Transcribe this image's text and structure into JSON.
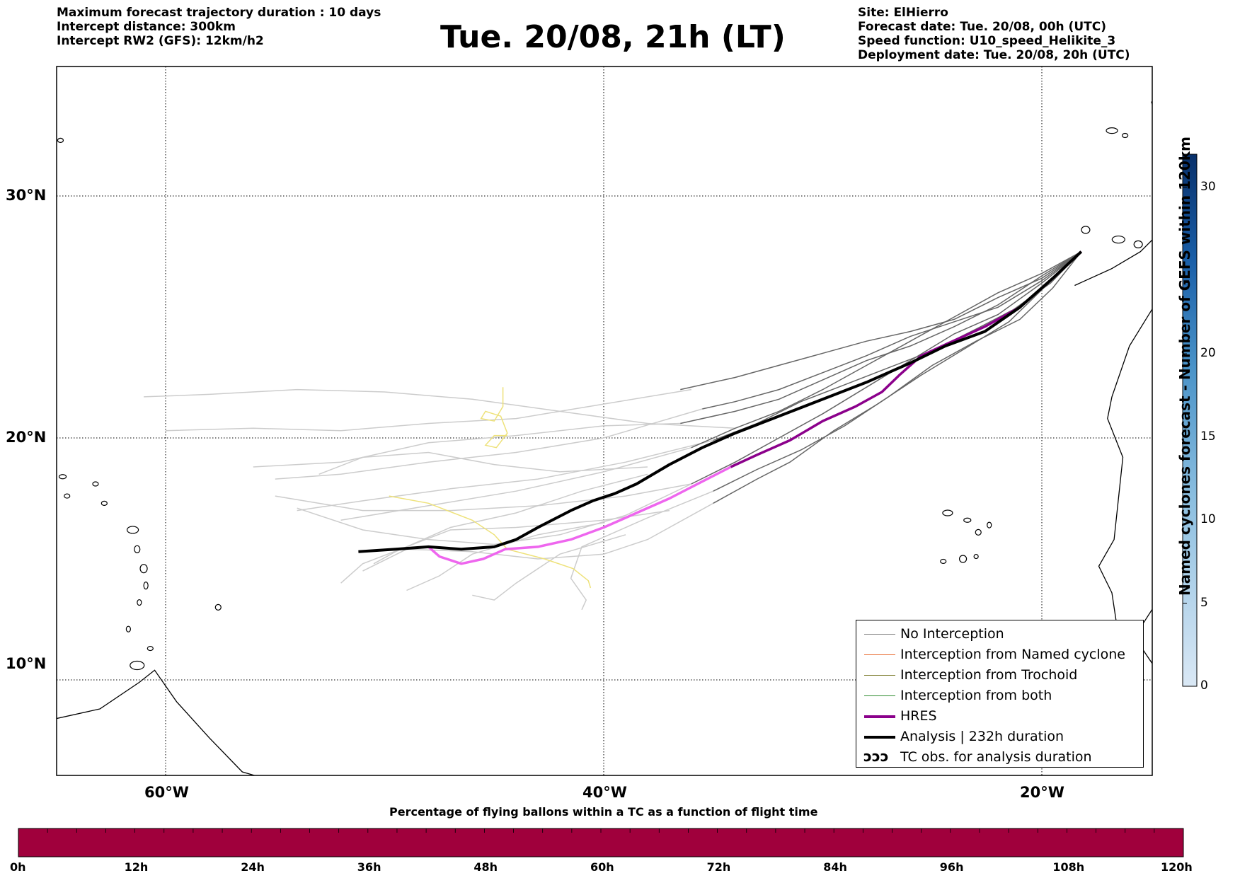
{
  "header": {
    "left_lines": [
      "Maximum forecast trajectory duration : 10 days",
      "Intercept distance: 300km",
      "Intercept RW2 (GFS):  12km/h2"
    ],
    "title": "Tue. 20/08, 21h (LT)",
    "right_lines": [
      "Site: ElHierro",
      "Forecast date: Tue. 20/08, 00h (UTC)",
      "Speed function: U10_speed_Helikite_3",
      "Deployment date: Tue. 20/08, 20h (UTC)"
    ]
  },
  "map": {
    "lon_range": [
      -65,
      15
    ],
    "lat_range": [
      4.6,
      33.9
    ],
    "lat_labels": [
      {
        "value": 30,
        "text": "30°N"
      },
      {
        "value": 20,
        "text": "20°N"
      },
      {
        "value": 10,
        "text": "10°N"
      }
    ],
    "lon_labels": [
      {
        "value": -60,
        "text": "60°W"
      },
      {
        "value": -40,
        "text": "40°W"
      },
      {
        "value": -20,
        "text": "20°W"
      }
    ],
    "gridlines": "dotted",
    "release_point": {
      "lon": -18.2,
      "lat": 27.7
    },
    "colors": {
      "no_interception_far": "#cccccc",
      "no_interception_near": "#666666",
      "hres_near": "#8b008b",
      "hres_far": "#ee66ee",
      "analysis": "#000000",
      "yellow_track": "#eee27a",
      "coast": "#000000"
    },
    "tracks": {
      "analysis": [
        [
          -18.2,
          27.7
        ],
        [
          -19.5,
          26.6
        ],
        [
          -21,
          25.4
        ],
        [
          -22.6,
          24.4
        ],
        [
          -24.4,
          23.8
        ],
        [
          -26,
          23.1
        ],
        [
          -28,
          22.3
        ],
        [
          -30,
          21.6
        ],
        [
          -32,
          20.9
        ],
        [
          -34,
          20.2
        ],
        [
          -35.5,
          19.6
        ],
        [
          -37,
          18.9
        ],
        [
          -38.5,
          18.1
        ],
        [
          -39.5,
          17.7
        ],
        [
          -40.5,
          17.4
        ],
        [
          -41.5,
          17.0
        ],
        [
          -43,
          16.3
        ],
        [
          -44,
          15.8
        ],
        [
          -45,
          15.5
        ],
        [
          -46.5,
          15.4
        ],
        [
          -48,
          15.5
        ],
        [
          -49.5,
          15.4
        ],
        [
          -51.2,
          15.3
        ]
      ],
      "hres_near": [
        [
          -18.2,
          27.7
        ],
        [
          -19.5,
          26.6
        ],
        [
          -21,
          25.4
        ],
        [
          -22.6,
          24.6
        ],
        [
          -24.3,
          23.9
        ],
        [
          -25.5,
          23.4
        ],
        [
          -26.5,
          22.6
        ],
        [
          -27.3,
          21.9
        ],
        [
          -28.5,
          21.3
        ],
        [
          -30,
          20.7
        ],
        [
          -31.5,
          19.9
        ],
        [
          -33,
          19.3
        ],
        [
          -34.2,
          18.8
        ]
      ],
      "hres_far": [
        [
          -34.2,
          18.8
        ],
        [
          -35.5,
          18.2
        ],
        [
          -37,
          17.5
        ],
        [
          -38.5,
          16.9
        ],
        [
          -40,
          16.3
        ],
        [
          -41.5,
          15.8
        ],
        [
          -43,
          15.5
        ],
        [
          -44.5,
          15.4
        ],
        [
          -45.5,
          15.0
        ],
        [
          -46.5,
          14.8
        ],
        [
          -47.5,
          15.1
        ],
        [
          -48,
          15.5
        ]
      ],
      "yellow": [
        [
          -49.8,
          17.6
        ],
        [
          -48,
          17.3
        ],
        [
          -46,
          16.6
        ],
        [
          -45,
          16.0
        ],
        [
          -44.4,
          15.4
        ],
        [
          -42.7,
          15.0
        ],
        [
          -41.4,
          14.6
        ],
        [
          -40.7,
          14.1
        ],
        [
          -40.6,
          13.8
        ]
      ],
      "yellow_loop": [
        [
          -44.6,
          22.1
        ],
        [
          -44.6,
          21.3
        ],
        [
          -45.0,
          20.7
        ],
        [
          -45.6,
          20.8
        ],
        [
          -45.4,
          21.1
        ],
        [
          -44.7,
          20.9
        ],
        [
          -44.4,
          20.2
        ],
        [
          -44.9,
          19.6
        ],
        [
          -45.4,
          19.7
        ],
        [
          -45.0,
          20.1
        ],
        [
          -44.4,
          20.1
        ]
      ],
      "gray_near": [
        [
          [
            -18.2,
            27.7
          ],
          [
            -20,
            26.7
          ],
          [
            -22,
            25.5
          ],
          [
            -24,
            24.6
          ],
          [
            -26,
            23.8
          ],
          [
            -28,
            23.2
          ],
          [
            -30,
            22.4
          ],
          [
            -32,
            21.6
          ],
          [
            -34,
            21.1
          ],
          [
            -36.5,
            20.6
          ]
        ],
        [
          [
            -18.2,
            27.7
          ],
          [
            -20,
            26.4
          ],
          [
            -22,
            25.1
          ],
          [
            -24,
            24.3
          ],
          [
            -26,
            23.2
          ],
          [
            -28,
            22.1
          ],
          [
            -30,
            21.0
          ],
          [
            -32,
            20.0
          ],
          [
            -34,
            19.0
          ],
          [
            -36,
            18.1
          ]
        ],
        [
          [
            -18.2,
            27.7
          ],
          [
            -20,
            26.6
          ],
          [
            -22,
            25.8
          ],
          [
            -24,
            24.9
          ],
          [
            -26,
            24.4
          ],
          [
            -28,
            24.0
          ],
          [
            -30,
            23.5
          ],
          [
            -32,
            23.0
          ],
          [
            -34,
            22.5
          ],
          [
            -36.5,
            22.0
          ]
        ],
        [
          [
            -18.2,
            27.7
          ],
          [
            -19.8,
            26.3
          ],
          [
            -21.5,
            24.8
          ],
          [
            -23.5,
            23.7
          ],
          [
            -25.5,
            22.6
          ],
          [
            -27.5,
            21.4
          ],
          [
            -29.5,
            20.3
          ],
          [
            -31.5,
            19.0
          ],
          [
            -33,
            18.3
          ],
          [
            -35,
            17.3
          ]
        ],
        [
          [
            -18.2,
            27.7
          ],
          [
            -20,
            26.5
          ],
          [
            -22,
            25.4
          ],
          [
            -24,
            24.8
          ],
          [
            -26,
            24.2
          ],
          [
            -28,
            23.4
          ],
          [
            -30,
            22.7
          ],
          [
            -32,
            22.0
          ],
          [
            -34,
            21.5
          ],
          [
            -35.5,
            21.2
          ]
        ],
        [
          [
            -18.2,
            27.7
          ],
          [
            -19.5,
            26.2
          ],
          [
            -21,
            24.9
          ],
          [
            -23,
            24.0
          ],
          [
            -25,
            23.0
          ],
          [
            -27,
            21.7
          ],
          [
            -29,
            20.5
          ],
          [
            -31,
            19.5
          ],
          [
            -33,
            18.7
          ],
          [
            -35,
            17.8
          ]
        ],
        [
          [
            -18.2,
            27.7
          ],
          [
            -20,
            26.8
          ],
          [
            -22,
            26.0
          ],
          [
            -24,
            25.0
          ],
          [
            -26,
            24.0
          ],
          [
            -28,
            23.0
          ],
          [
            -30,
            22.0
          ],
          [
            -32,
            21.1
          ],
          [
            -34,
            20.4
          ],
          [
            -36,
            19.6
          ]
        ],
        [
          [
            -18.2,
            27.7
          ],
          [
            -19.6,
            26.4
          ],
          [
            -21.3,
            25.3
          ],
          [
            -23,
            24.5
          ],
          [
            -25,
            23.6
          ],
          [
            -27,
            22.9
          ],
          [
            -29,
            22.2
          ],
          [
            -31,
            21.5
          ],
          [
            -33,
            20.6
          ],
          [
            -35,
            19.9
          ]
        ]
      ],
      "gray_far": [
        [
          [
            -36.5,
            20.6
          ],
          [
            -40,
            20.5
          ],
          [
            -44,
            20.1
          ],
          [
            -48,
            19.8
          ],
          [
            -52,
            19.0
          ],
          [
            -56,
            18.8
          ]
        ],
        [
          [
            -36,
            22.0
          ],
          [
            -40,
            21.4
          ],
          [
            -44,
            20.8
          ],
          [
            -48,
            20.6
          ],
          [
            -52,
            20.3
          ],
          [
            -56,
            20.4
          ],
          [
            -60,
            20.3
          ]
        ],
        [
          [
            -35.5,
            21.2
          ],
          [
            -40,
            20.0
          ],
          [
            -44,
            19.4
          ],
          [
            -48,
            19.0
          ],
          [
            -52,
            18.5
          ],
          [
            -55,
            18.3
          ]
        ],
        [
          [
            -35,
            17.3
          ],
          [
            -38,
            15.8
          ],
          [
            -40,
            15.2
          ],
          [
            -43,
            15.0
          ],
          [
            -46,
            15.3
          ],
          [
            -49,
            15.4
          ],
          [
            -51,
            14.5
          ]
        ],
        [
          [
            -36,
            18.1
          ],
          [
            -39,
            16.8
          ],
          [
            -42,
            16.0
          ],
          [
            -45,
            15.6
          ],
          [
            -48,
            15.8
          ],
          [
            -51,
            16.2
          ],
          [
            -54,
            17.1
          ]
        ],
        [
          [
            -35,
            19.9
          ],
          [
            -39,
            19.0
          ],
          [
            -43,
            18.3
          ],
          [
            -47,
            17.9
          ],
          [
            -51,
            17.4
          ],
          [
            -54,
            17.0
          ]
        ],
        [
          [
            -36,
            19.6
          ],
          [
            -40,
            18.6
          ],
          [
            -44,
            17.8
          ],
          [
            -48,
            17.2
          ],
          [
            -52,
            16.6
          ]
        ],
        [
          [
            -35,
            17.8
          ],
          [
            -38,
            16.7
          ],
          [
            -41,
            15.5
          ],
          [
            -41.5,
            14.2
          ],
          [
            -40.8,
            13.3
          ],
          [
            -41.0,
            12.9
          ]
        ],
        [
          [
            -38,
            18.5
          ],
          [
            -41,
            17.8
          ],
          [
            -44,
            16.9
          ],
          [
            -47,
            16.3
          ],
          [
            -49.5,
            15.3
          ],
          [
            -50.5,
            14.8
          ]
        ],
        [
          [
            -34,
            20.4
          ],
          [
            -38,
            20.6
          ],
          [
            -42,
            21.1
          ],
          [
            -46,
            21.6
          ],
          [
            -50,
            21.9
          ],
          [
            -54,
            22.0
          ],
          [
            -58,
            21.8
          ],
          [
            -61,
            21.7
          ]
        ],
        [
          [
            -38,
            18.8
          ],
          [
            -42,
            18.6
          ],
          [
            -45,
            18.9
          ],
          [
            -48,
            19.4
          ],
          [
            -51,
            19.2
          ],
          [
            -53,
            18.5
          ]
        ],
        [
          [
            -40,
            16.5
          ],
          [
            -43,
            16.0
          ],
          [
            -46,
            15.2
          ],
          [
            -47.5,
            14.3
          ],
          [
            -49,
            13.7
          ]
        ],
        [
          [
            -39,
            16.0
          ],
          [
            -42,
            15.2
          ],
          [
            -44,
            14.0
          ],
          [
            -45,
            13.3
          ],
          [
            -46,
            13.5
          ]
        ],
        [
          [
            -36,
            18.1
          ],
          [
            -39,
            17.6
          ],
          [
            -43,
            17.2
          ],
          [
            -47,
            17.0
          ],
          [
            -51,
            17.0
          ],
          [
            -55,
            17.6
          ]
        ],
        [
          [
            -37,
            17.0
          ],
          [
            -40,
            16.6
          ],
          [
            -44,
            16.3
          ],
          [
            -47,
            16.2
          ],
          [
            -49,
            15.5
          ],
          [
            -51,
            14.8
          ],
          [
            -52,
            14.0
          ]
        ]
      ]
    }
  },
  "legend": {
    "items": [
      {
        "label": "No Interception",
        "color": "#888888",
        "width": 1.5
      },
      {
        "label": "Interception from Named cyclone",
        "color": "#e8672a",
        "width": 1.5
      },
      {
        "label": "Interception from Trochoid",
        "color": "#7a7a2a",
        "width": 1.5
      },
      {
        "label": "Interception from both",
        "color": "#2e8b2e",
        "width": 1.5
      },
      {
        "label": "HRES",
        "color": "#8b008b",
        "width": 4
      },
      {
        "label": "Analysis | 232h duration",
        "color": "#000000",
        "width": 4
      },
      {
        "label": "TC obs. for analysis duration",
        "color": "#000000",
        "width": 0
      }
    ],
    "tc_obs_glyph": "ↄↄↄ"
  },
  "right_colorbar": {
    "label": "Named cyclones forecast - Number of GEFS within 120km",
    "ticks": [
      "0",
      "5",
      "10",
      "15",
      "20",
      "30"
    ],
    "min": 0,
    "max": 32,
    "color_low": "#dae8f5",
    "color_high": "#08306b"
  },
  "bottom_colorbar": {
    "title": "Percentage of flying ballons within a TC as a function of flight time",
    "ticks": [
      "0h",
      "12h",
      "24h",
      "36h",
      "48h",
      "60h",
      "72h",
      "84h",
      "96h",
      "108h",
      "120h"
    ],
    "fill_color": "#a0003c"
  }
}
